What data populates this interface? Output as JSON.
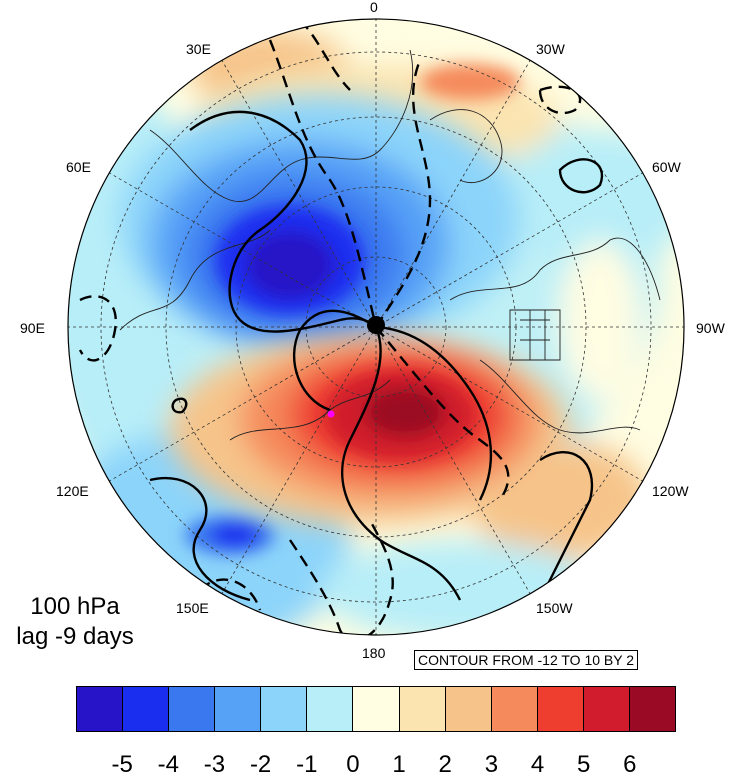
{
  "map": {
    "longitude_labels": [
      {
        "id": "lon-0",
        "text": "0"
      },
      {
        "id": "lon-30w",
        "text": "30W"
      },
      {
        "id": "lon-60w",
        "text": "60W"
      },
      {
        "id": "lon-90w",
        "text": "90W"
      },
      {
        "id": "lon-120w",
        "text": "120W"
      },
      {
        "id": "lon-150w",
        "text": "150W"
      },
      {
        "id": "lon-180",
        "text": "180"
      },
      {
        "id": "lon-150e",
        "text": "150E"
      },
      {
        "id": "lon-120e",
        "text": "120E"
      },
      {
        "id": "lon-90e",
        "text": "90E"
      },
      {
        "id": "lon-60e",
        "text": "60E"
      },
      {
        "id": "lon-30e",
        "text": "30E"
      }
    ],
    "projection": "north polar stereographic",
    "colors": {
      "blue_dark": "#2012c8",
      "blue": "#1a2ef0",
      "red": "#e8282e",
      "red_dark": "#9b0a24"
    }
  },
  "title": {
    "level": "100 hPa",
    "lag": "lag -9 days"
  },
  "contour_note": "CONTOUR FROM -12 TO 10 BY 2",
  "colorbar": {
    "colors": [
      "#2713c8",
      "#1a2ef0",
      "#3a78f0",
      "#56a2f7",
      "#8cd4fa",
      "#b8eef8",
      "#fffde2",
      "#fbe4b0",
      "#f6c48a",
      "#f58a5c",
      "#ee3e30",
      "#d01c2c",
      "#9b0a24"
    ],
    "labels": [
      "-5",
      "-4",
      "-3",
      "-2",
      "-1",
      "0",
      "1",
      "2",
      "3",
      "4",
      "5",
      "6"
    ]
  }
}
